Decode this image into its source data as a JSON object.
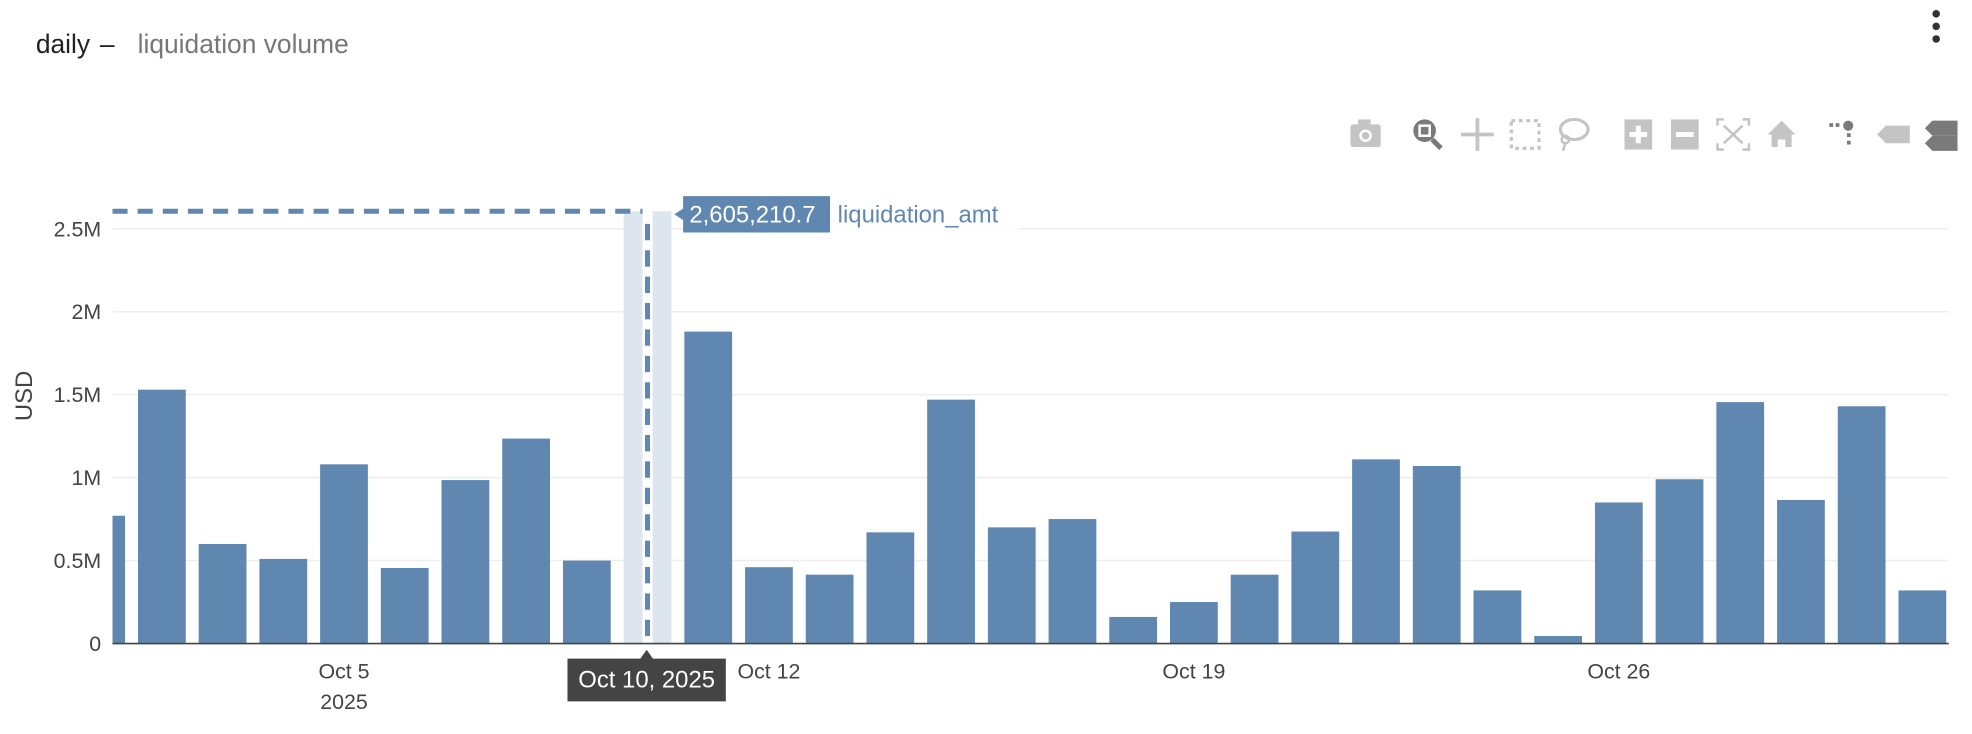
{
  "header": {
    "title_main": "daily",
    "title_sep": "–",
    "title_sub": "liquidation volume",
    "menu_icon": "kebab-vertical-icon"
  },
  "toolbar": {
    "icons": [
      "camera-icon",
      "zoom-icon",
      "pan-icon",
      "box-select-icon",
      "lasso-select-icon",
      "zoom-in-icon",
      "zoom-out-icon",
      "autoscale-icon",
      "reset-axes-icon",
      "spike-lines-icon",
      "hover-closest-icon",
      "hover-compare-icon"
    ],
    "active": "zoom-icon"
  },
  "colors": {
    "bar": "#5f87b0",
    "highlight": "#dde6ee",
    "accent": "#5f87b0",
    "tooltip_x": "#444444"
  },
  "hover": {
    "value_label": "2,605,210.7",
    "series_label": "liquidation_amt",
    "x_label": "Oct 10, 2025"
  },
  "chart_data": {
    "type": "bar",
    "title": "daily – liquidation volume",
    "xlabel": "",
    "ylabel": "USD",
    "ylim": [
      0,
      2600000
    ],
    "grid": true,
    "y_ticks": [
      {
        "value": 0,
        "label": "0"
      },
      {
        "value": 500000,
        "label": "0.5M"
      },
      {
        "value": 1000000,
        "label": "1M"
      },
      {
        "value": 1500000,
        "label": "1.5M"
      },
      {
        "value": 2000000,
        "label": "2M"
      },
      {
        "value": 2500000,
        "label": "2.5M"
      }
    ],
    "x_ticks": [
      {
        "day": 5,
        "label": "Oct 5",
        "sub": "2025"
      },
      {
        "day": 12,
        "label": "Oct 12",
        "sub": ""
      },
      {
        "day": 19,
        "label": "Oct 19",
        "sub": ""
      },
      {
        "day": 26,
        "label": "Oct 26",
        "sub": ""
      }
    ],
    "x_range_days": [
      0.8,
      31.2
    ],
    "highlight_day": 10,
    "series": [
      {
        "name": "liquidation_amt",
        "x": [
          1,
          2,
          3,
          4,
          5,
          6,
          7,
          8,
          9,
          10,
          11,
          12,
          13,
          14,
          15,
          16,
          17,
          18,
          19,
          20,
          21,
          22,
          23,
          24,
          25,
          26,
          27,
          28,
          29,
          30,
          31
        ],
        "values": [
          770000,
          1530000,
          600000,
          510000,
          1080000,
          455000,
          985000,
          1235000,
          500000,
          2605210.7,
          1880000,
          460000,
          415000,
          670000,
          1470000,
          700000,
          750000,
          160000,
          250000,
          415000,
          675000,
          1110000,
          1070000,
          320000,
          45000,
          850000,
          990000,
          1455000,
          865000,
          1430000,
          320000
        ]
      }
    ]
  }
}
